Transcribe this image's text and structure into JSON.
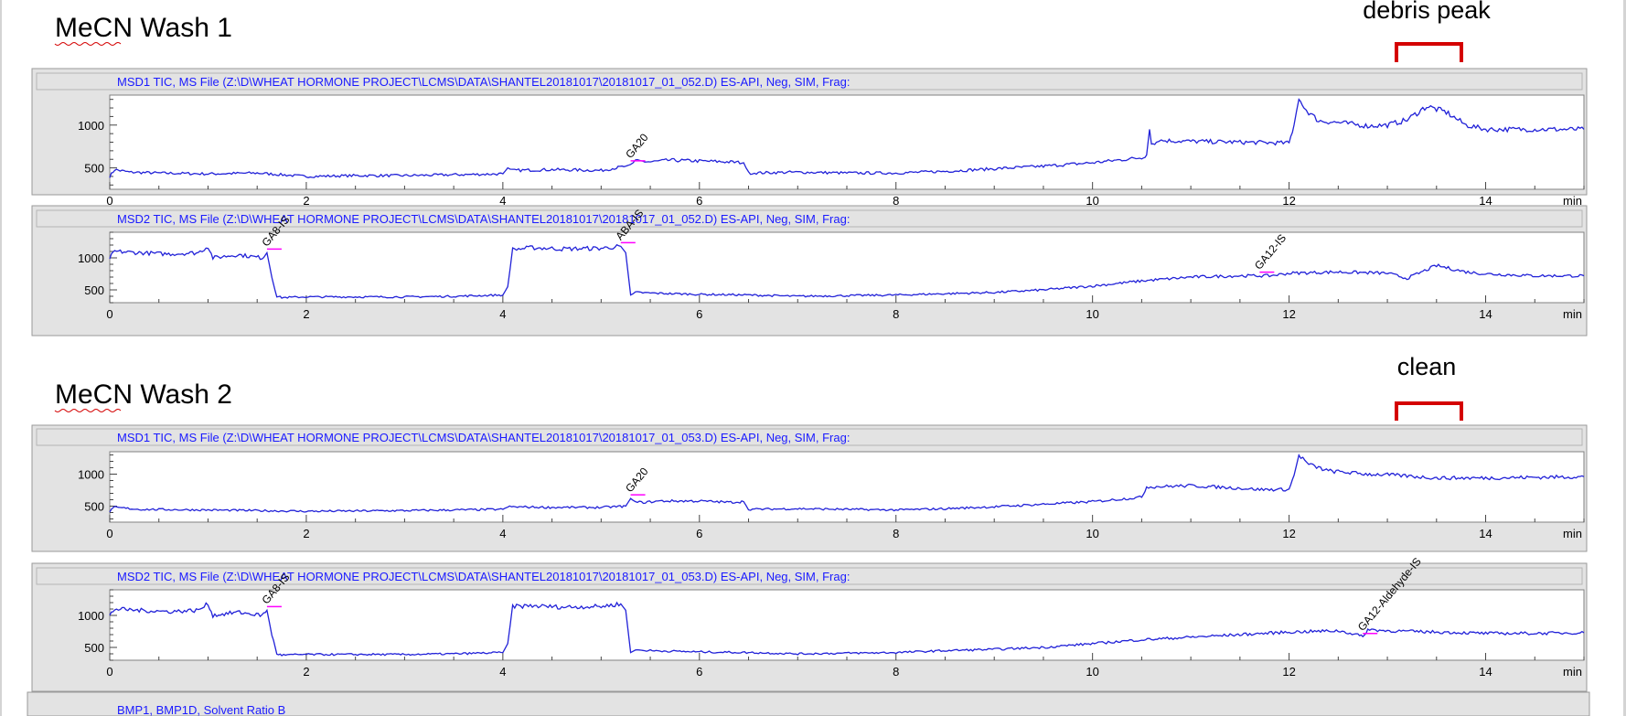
{
  "sections": [
    {
      "title": "MeCN Wash 1",
      "callout": "debris peak"
    },
    {
      "title": "MeCN Wash 2",
      "callout": "clean"
    }
  ],
  "colors": {
    "trace": "#2222d8",
    "header_text": "#1a1aff",
    "integration": "#ff00ff",
    "bracket": "#d40000",
    "panel_bg": "#e3e3e3",
    "plot_bg": "#ffffff"
  },
  "footer_text": "BMP1, BMP1D, Solvent Ratio B",
  "chart_data": [
    {
      "type": "line",
      "section": "MeCN Wash 1",
      "header": "MSD1 TIC, MS File (Z:\\D\\WHEAT HORMONE PROJECT\\LCMS\\DATA\\SHANTEL20181017\\20181017_01_052.D)    ES-API, Neg, SIM, Frag:",
      "xlim": [
        0,
        15
      ],
      "ylim": [
        250,
        1350
      ],
      "xticks": [
        "0",
        "2",
        "4",
        "6",
        "8",
        "10",
        "12",
        "14"
      ],
      "xunit": "min",
      "yticks": [
        500,
        1000
      ],
      "x": [
        0,
        0.05,
        0.2,
        0.5,
        1,
        1.5,
        2,
        2.5,
        3,
        3.5,
        4,
        4.05,
        4.1,
        4.5,
        5,
        5.25,
        5.3,
        5.35,
        5.5,
        5.7,
        6,
        6.3,
        6.45,
        6.5,
        7,
        7.5,
        8,
        8.5,
        9,
        9.5,
        10,
        10.5,
        10.55,
        10.58,
        10.6,
        10.65,
        10.7,
        11,
        11.5,
        12,
        12.05,
        12.1,
        12.15,
        12.2,
        12.3,
        12.5,
        12.8,
        13,
        13.2,
        13.4,
        13.6,
        13.8,
        14,
        14.5,
        15
      ],
      "y": [
        400,
        480,
        450,
        440,
        430,
        440,
        400,
        410,
        410,
        420,
        430,
        500,
        470,
        480,
        470,
        520,
        540,
        580,
        570,
        590,
        580,
        570,
        560,
        440,
        450,
        440,
        440,
        460,
        490,
        520,
        560,
        620,
        650,
        950,
        780,
        800,
        820,
        810,
        800,
        790,
        1000,
        1320,
        1200,
        1150,
        1050,
        1030,
        990,
        1000,
        1060,
        1220,
        1150,
        1000,
        950,
        950,
        950
      ],
      "peaks": [
        {
          "label": "GA20",
          "x": 5.3
        }
      ]
    },
    {
      "type": "line",
      "section": "MeCN Wash 1",
      "header": "MSD2 TIC, MS File (Z:\\D\\WHEAT HORMONE PROJECT\\LCMS\\DATA\\SHANTEL20181017\\20181017_01_052.D)    ES-API, Neg, SIM, Frag:",
      "xlim": [
        0,
        15
      ],
      "ylim": [
        300,
        1400
      ],
      "xticks": [
        "0",
        "2",
        "4",
        "6",
        "8",
        "10",
        "12",
        "14"
      ],
      "xunit": "min",
      "yticks": [
        500,
        1000
      ],
      "x": [
        0,
        0.05,
        0.3,
        0.6,
        0.9,
        1,
        1.05,
        1.3,
        1.55,
        1.6,
        1.65,
        1.7,
        1.75,
        2,
        2.5,
        3,
        3.5,
        4,
        4.05,
        4.1,
        4.3,
        4.6,
        5,
        5.2,
        5.25,
        5.3,
        5.35,
        5.5,
        6,
        6.5,
        7,
        7.5,
        8,
        8.5,
        9,
        9.5,
        10,
        10.5,
        11,
        11.5,
        11.8,
        12,
        12.5,
        13,
        13.2,
        13.5,
        13.8,
        14,
        14.5,
        15
      ],
      "y": [
        1000,
        1100,
        1080,
        1060,
        1080,
        1180,
        1000,
        1050,
        1000,
        1080,
        700,
        400,
        380,
        390,
        390,
        390,
        400,
        420,
        550,
        1130,
        1160,
        1140,
        1150,
        1180,
        1080,
        420,
        460,
        450,
        430,
        420,
        400,
        410,
        420,
        440,
        460,
        500,
        560,
        640,
        700,
        720,
        720,
        760,
        780,
        760,
        680,
        880,
        780,
        750,
        720,
        720
      ],
      "peaks": [
        {
          "label": "GA8-IS",
          "x": 1.6
        },
        {
          "label": "ABA-IS",
          "x": 5.2
        },
        {
          "label": "GA12-IS",
          "x": 11.7
        }
      ]
    },
    {
      "type": "line",
      "section": "MeCN Wash 2",
      "header": "MSD1 TIC, MS File (Z:\\D\\WHEAT HORMONE PROJECT\\LCMS\\DATA\\SHANTEL20181017\\20181017_01_053.D)    ES-API, Neg, SIM, Frag:",
      "xlim": [
        0,
        15
      ],
      "ylim": [
        250,
        1350
      ],
      "xticks": [
        "0",
        "2",
        "4",
        "6",
        "8",
        "10",
        "12",
        "14"
      ],
      "xunit": "min",
      "yticks": [
        500,
        1000
      ],
      "x": [
        0,
        0.05,
        0.3,
        1,
        2,
        3,
        4,
        4.05,
        4.5,
        5,
        5.25,
        5.3,
        5.35,
        5.45,
        5.6,
        6,
        6.3,
        6.45,
        6.5,
        7,
        7.5,
        8,
        8.5,
        9,
        9.5,
        10,
        10.5,
        10.55,
        11,
        11.5,
        11.7,
        12,
        12.05,
        12.1,
        12.2,
        12.4,
        12.8,
        13,
        13.5,
        14,
        14.5,
        15
      ],
      "y": [
        420,
        480,
        450,
        440,
        420,
        430,
        450,
        490,
        480,
        480,
        500,
        620,
        560,
        560,
        580,
        580,
        560,
        570,
        450,
        460,
        450,
        440,
        460,
        490,
        530,
        570,
        640,
        800,
        820,
        780,
        760,
        760,
        980,
        1300,
        1150,
        1050,
        1000,
        990,
        940,
        940,
        950,
        960
      ],
      "peaks": [
        {
          "label": "GA20",
          "x": 5.3
        }
      ]
    },
    {
      "type": "line",
      "section": "MeCN Wash 2",
      "header": "MSD2 TIC, MS File (Z:\\D\\WHEAT HORMONE PROJECT\\LCMS\\DATA\\SHANTEL20181017\\20181017_01_053.D)    ES-API, Neg, SIM, Frag:",
      "xlim": [
        0,
        15
      ],
      "ylim": [
        300,
        1400
      ],
      "xticks": [
        "0",
        "2",
        "4",
        "6",
        "8",
        "10",
        "12",
        "14"
      ],
      "xunit": "min",
      "yticks": [
        500,
        1000
      ],
      "x": [
        0,
        0.05,
        0.3,
        0.6,
        0.9,
        1,
        1.05,
        1.3,
        1.55,
        1.6,
        1.65,
        1.7,
        1.75,
        2,
        2.5,
        3,
        3.5,
        4,
        4.05,
        4.1,
        4.3,
        4.6,
        5,
        5.2,
        5.25,
        5.3,
        5.35,
        5.5,
        6,
        6.5,
        7,
        7.5,
        8,
        8.5,
        9,
        9.5,
        10,
        10.5,
        11,
        11.5,
        12,
        12.5,
        12.7,
        12.75,
        12.8,
        13,
        13.5,
        14,
        14.5,
        15
      ],
      "y": [
        1000,
        1100,
        1080,
        1060,
        1080,
        1180,
        1000,
        1050,
        1000,
        1080,
        700,
        400,
        380,
        390,
        390,
        390,
        400,
        420,
        560,
        1140,
        1150,
        1130,
        1140,
        1180,
        1080,
        420,
        460,
        450,
        430,
        420,
        400,
        410,
        420,
        450,
        470,
        500,
        560,
        620,
        660,
        700,
        740,
        760,
        700,
        660,
        780,
        760,
        740,
        720,
        720,
        730
      ],
      "peaks": [
        {
          "label": "GA8-IS",
          "x": 1.6
        },
        {
          "label": "GA12-Aldehyde-IS",
          "x": 12.75
        }
      ]
    }
  ]
}
